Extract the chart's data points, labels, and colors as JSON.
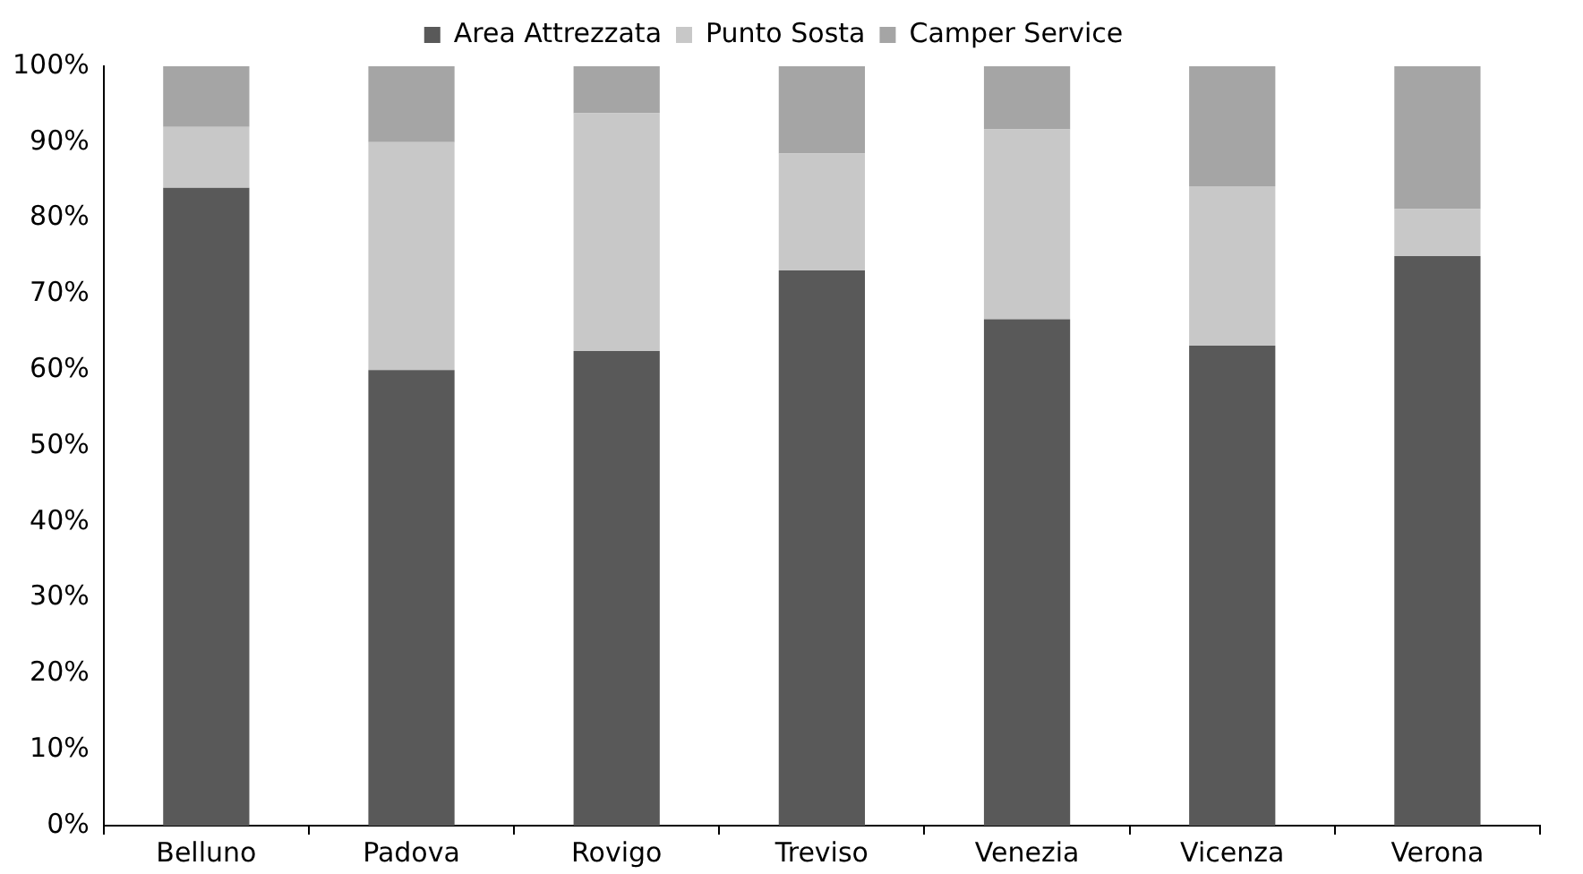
{
  "chart_data": {
    "type": "bar",
    "stacked": true,
    "categories": [
      "Belluno",
      "Padova",
      "Rovigo",
      "Treviso",
      "Venezia",
      "Vicenza",
      "Verona"
    ],
    "series": [
      {
        "name": "Area Attrezzata",
        "color": "#595959",
        "values": [
          84,
          60,
          62.5,
          73.1,
          66.7,
          63.2,
          75
        ]
      },
      {
        "name": "Punto Sosta",
        "color": "#c8c8c8",
        "values": [
          8,
          30,
          31.3,
          15.4,
          25,
          21,
          6.2
        ]
      },
      {
        "name": "Camper Service",
        "color": "#a5a5a5",
        "values": [
          8,
          10,
          6.2,
          11.5,
          8.3,
          15.8,
          18.8
        ]
      }
    ],
    "ylim": [
      0,
      100
    ],
    "yticks": [
      {
        "value": 0,
        "label": "0%"
      },
      {
        "value": 10,
        "label": "10%"
      },
      {
        "value": 20,
        "label": "20%"
      },
      {
        "value": 30,
        "label": "30%"
      },
      {
        "value": 40,
        "label": "40%"
      },
      {
        "value": 50,
        "label": "50%"
      },
      {
        "value": 60,
        "label": "60%"
      },
      {
        "value": 70,
        "label": "70%"
      },
      {
        "value": 80,
        "label": "80%"
      },
      {
        "value": 90,
        "label": "90%"
      },
      {
        "value": 100,
        "label": "100%"
      }
    ],
    "grid": false,
    "legend": "top"
  }
}
